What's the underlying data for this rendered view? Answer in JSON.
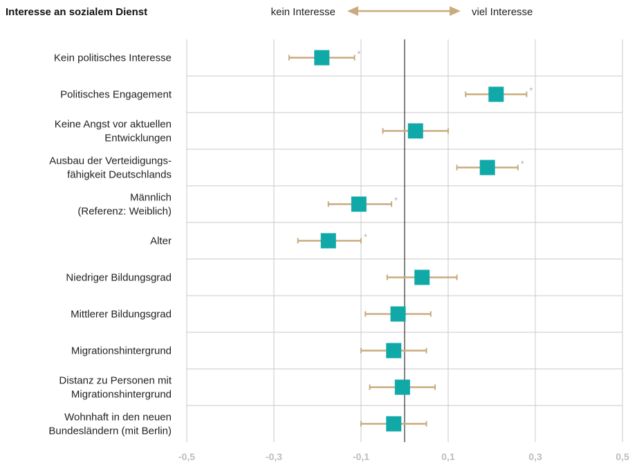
{
  "header": {
    "title": "Interesse an sozialem Dienst",
    "left_label": "kein Interesse",
    "right_label": "viel Interesse"
  },
  "colors": {
    "marker": "#11a8a8",
    "errorbar": "#c8ab7e",
    "arrow": "#c8ab7e",
    "grid": "#c8c8c8",
    "zero_line": "#000000",
    "tick_label": "#bdbdbd",
    "significance": "#b0b0b0"
  },
  "chart_data": {
    "type": "scatter",
    "subtype": "coefficient-plot-with-error-bars",
    "xlim": [
      -0.5,
      0.5
    ],
    "x_ticks": [
      -0.5,
      -0.3,
      -0.1,
      0.1,
      0.3,
      0.5
    ],
    "x_tick_labels": [
      "-0,5",
      "-0,3",
      "-0,1",
      "0,1",
      "0,3",
      "0,5"
    ],
    "grid": true,
    "reference_line": 0,
    "significance_marker": "*",
    "points": [
      {
        "label": [
          "Kein politisches Interesse"
        ],
        "estimate": -0.19,
        "lower": -0.265,
        "upper": -0.115,
        "significant": true
      },
      {
        "label": [
          "Politisches Engagement"
        ],
        "estimate": 0.21,
        "lower": 0.14,
        "upper": 0.28,
        "significant": true
      },
      {
        "label": [
          "Keine Angst vor aktuellen",
          "Entwicklungen"
        ],
        "estimate": 0.025,
        "lower": -0.05,
        "upper": 0.1,
        "significant": false
      },
      {
        "label": [
          "Ausbau der Verteidigungs-",
          "fähigkeit Deutschlands"
        ],
        "estimate": 0.19,
        "lower": 0.12,
        "upper": 0.26,
        "significant": true
      },
      {
        "label": [
          "Männlich",
          "(Referenz: Weiblich)"
        ],
        "estimate": -0.105,
        "lower": -0.175,
        "upper": -0.03,
        "significant": true
      },
      {
        "label": [
          "Alter"
        ],
        "estimate": -0.175,
        "lower": -0.245,
        "upper": -0.1,
        "significant": true
      },
      {
        "label": [
          "Niedriger Bildungsgrad"
        ],
        "estimate": 0.04,
        "lower": -0.04,
        "upper": 0.12,
        "significant": false
      },
      {
        "label": [
          "Mittlerer Bildungsgrad"
        ],
        "estimate": -0.015,
        "lower": -0.09,
        "upper": 0.06,
        "significant": false
      },
      {
        "label": [
          "Migrationshintergrund"
        ],
        "estimate": -0.025,
        "lower": -0.1,
        "upper": 0.05,
        "significant": false
      },
      {
        "label": [
          "Distanz zu Personen mit",
          "Migrationshintergrund"
        ],
        "estimate": -0.005,
        "lower": -0.08,
        "upper": 0.07,
        "significant": false
      },
      {
        "label": [
          "Wohnhaft in den neuen",
          "Bundesländern (mit Berlin)"
        ],
        "estimate": -0.025,
        "lower": -0.1,
        "upper": 0.05,
        "significant": false
      }
    ]
  }
}
